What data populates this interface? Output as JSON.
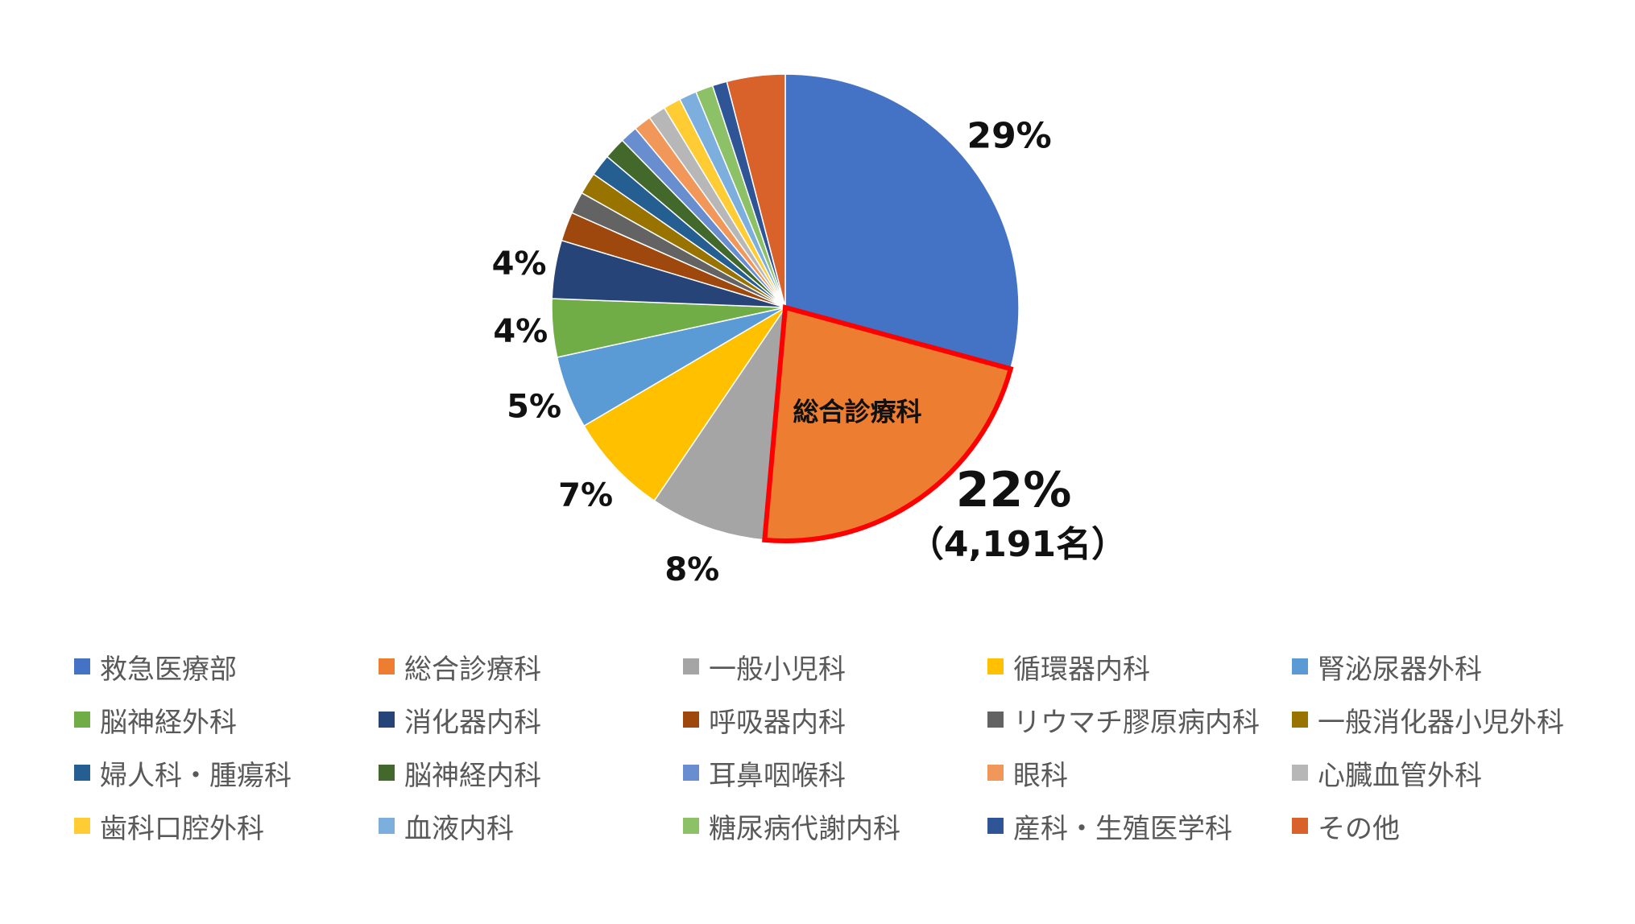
{
  "chart_data": {
    "type": "pie",
    "title": "",
    "slices": [
      {
        "label": "救急医療部",
        "value": 29,
        "color": "#4472C4"
      },
      {
        "label": "総合診療科",
        "value": 22,
        "color": "#ED7D31"
      },
      {
        "label": "一般小児科",
        "value": 8,
        "color": "#A5A5A5"
      },
      {
        "label": "循環器内科",
        "value": 7,
        "color": "#FFC000"
      },
      {
        "label": "腎泌尿器外科",
        "value": 5,
        "color": "#5B9BD5"
      },
      {
        "label": "脳神経外科",
        "value": 4,
        "color": "#70AD47"
      },
      {
        "label": "消化器内科",
        "value": 4,
        "color": "#264478"
      },
      {
        "label": "呼吸器内科",
        "value": 2,
        "color": "#9E480E"
      },
      {
        "label": "リウマチ膠原病内科",
        "value": 1.5,
        "color": "#636363"
      },
      {
        "label": "一般消化器小児外科",
        "value": 1.5,
        "color": "#997300"
      },
      {
        "label": "婦人科・腫瘍科",
        "value": 1.5,
        "color": "#255E91"
      },
      {
        "label": "脳神経内科",
        "value": 1.5,
        "color": "#43682B"
      },
      {
        "label": "耳鼻咽喉科",
        "value": 1.2,
        "color": "#698ED0"
      },
      {
        "label": "眼科",
        "value": 1.2,
        "color": "#F1975A"
      },
      {
        "label": "心臓血管外科",
        "value": 1.2,
        "color": "#B7B7B7"
      },
      {
        "label": "歯科口腔外科",
        "value": 1.2,
        "color": "#FFCD33"
      },
      {
        "label": "血液内科",
        "value": 1.2,
        "color": "#7CAFDD"
      },
      {
        "label": "糖尿病代謝内科",
        "value": 1.2,
        "color": "#8CC168"
      },
      {
        "label": "産科・生殖医学科",
        "value": 1.0,
        "color": "#2F5597"
      },
      {
        "label": "その他",
        "value": 4.0,
        "color": "#D9622B"
      }
    ],
    "data_labels": [
      "29%",
      "22%",
      "8%",
      "7%",
      "5%",
      "4%",
      "4%"
    ],
    "highlight": {
      "label": "総合診療科",
      "percent": "22%",
      "count": "（4,191名）",
      "outline_color": "#FF0000"
    },
    "legend_position": "bottom"
  }
}
